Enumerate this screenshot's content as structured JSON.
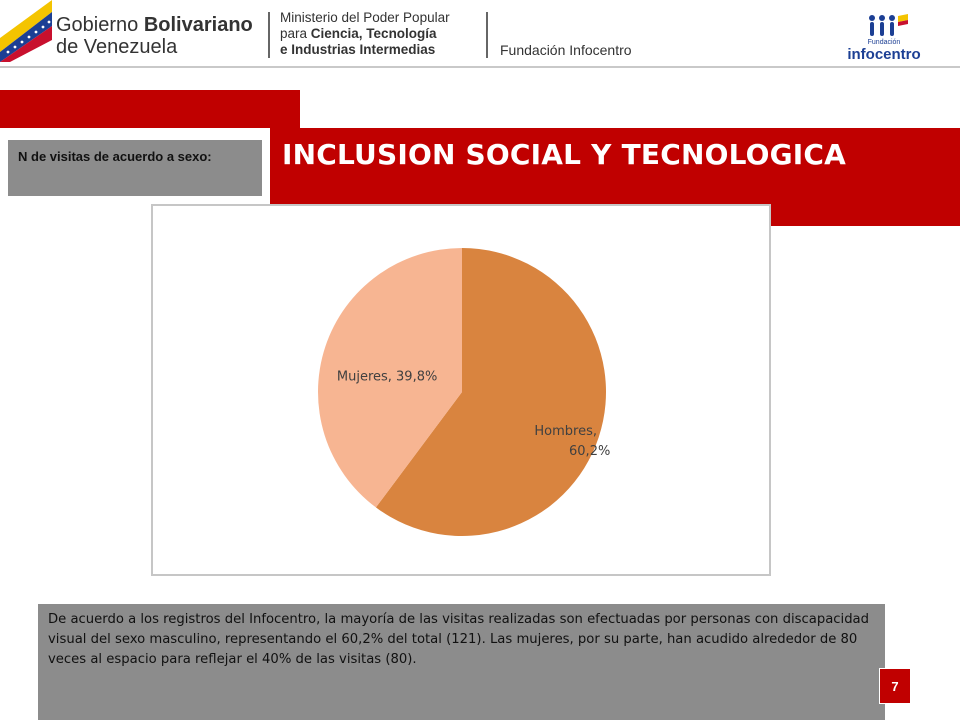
{
  "header": {
    "gov_line1_regular": "Gobierno ",
    "gov_line1_bold": "Bolivariano",
    "gov_line2": "de Venezuela",
    "ministry_line1": "Ministerio del Poder Popular",
    "ministry_line2_regular": "para ",
    "ministry_line2_bold": "Ciencia, Tecnología",
    "ministry_line3": "e Industrias Intermedias",
    "foundation": "Fundación Infocentro",
    "logo_small_text": "Fundación",
    "logo_brand": "infocentro"
  },
  "title": "INCLUSION SOCIAL Y TECNOLOGICA",
  "section_label": "N de visitas de acuerdo a sexo:",
  "chart_data": {
    "type": "pie",
    "title": "",
    "slices": [
      {
        "name": "Hombres",
        "value": 60.2,
        "label_line1": "Hombres,",
        "label_line2": "60,2%",
        "color": "#d9843f"
      },
      {
        "name": "Mujeres",
        "value": 39.8,
        "label_line1": "Mujeres, 39,8%",
        "label_line2": "",
        "color": "#f7b592"
      }
    ],
    "start_angle_deg": 0,
    "direction": "clockwise",
    "legend": "none"
  },
  "description": "De acuerdo a los registros del Infocentro, la mayoría de las visitas realizadas son efectuadas por personas con discapacidad visual del sexo masculino, representando el 60,2% del total (121).  Las mujeres, por su parte, han acudido alrededor de 80 veces al espacio para reflejar el 40% de las visitas (80).",
  "page_number": "7",
  "colors": {
    "accent_red": "#c00000",
    "panel_gray": "#8c8c8c"
  }
}
